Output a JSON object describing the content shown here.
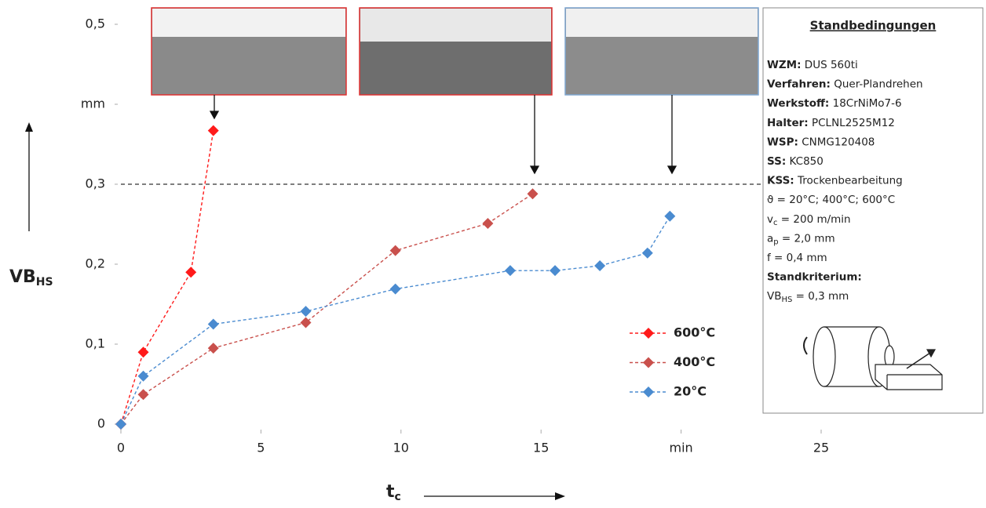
{
  "chart_data": {
    "type": "line",
    "ylabel": "VB",
    "ylabel_sub": "HS",
    "xlabel": "t",
    "xlabel_sub": "c",
    "xlim": [
      0,
      25
    ],
    "xticks": [
      0,
      5,
      10,
      15,
      {
        "value": 20,
        "label": "min"
      },
      25
    ],
    "ylim": [
      0,
      0.5
    ],
    "yticks": [
      0,
      {
        "value": 0.1,
        "label": "0,1"
      },
      {
        "value": 0.2,
        "label": "0,2"
      },
      {
        "value": 0.3,
        "label": "0,3"
      },
      {
        "value": 0.4,
        "label": "mm"
      },
      {
        "value": 0.5,
        "label": "0,5"
      }
    ],
    "threshold": 0.3,
    "series": [
      {
        "name": "600°C",
        "color": "#ff1a1a",
        "x": [
          0,
          0.8,
          2.5,
          3.3
        ],
        "values": [
          0,
          0.09,
          0.19,
          0.367
        ]
      },
      {
        "name": "400°C",
        "color": "#c9504c",
        "x": [
          0,
          0.8,
          3.3,
          6.6,
          9.8,
          13.1,
          14.7
        ],
        "values": [
          0,
          0.037,
          0.095,
          0.127,
          0.217,
          0.251,
          0.288
        ]
      },
      {
        "name": "20°C",
        "color": "#4a8bd0",
        "x": [
          0,
          0.8,
          3.3,
          6.6,
          9.8,
          13.9,
          15.5,
          17.1,
          18.8,
          19.6
        ],
        "values": [
          0,
          0.06,
          0.125,
          0.141,
          0.169,
          0.192,
          0.192,
          0.198,
          0.214,
          0.26
        ]
      }
    ]
  },
  "info": {
    "title": "Standbedingungen",
    "lines": [
      {
        "bold": "WZM:",
        "text": " DUS 560ti"
      },
      {
        "bold": "Verfahren:",
        "text": " Quer-Plandrehen"
      },
      {
        "bold": "Werkstoff:",
        "text": " 18CrNiMo7-6"
      },
      {
        "bold": "Halter:",
        "text": " PCLNL2525M12"
      },
      {
        "bold": "WSP:",
        "text": " CNMG120408"
      },
      {
        "bold": "SS:",
        "text": " KC850"
      },
      {
        "bold": "KSS:",
        "text": " Trockenbearbeitung"
      },
      {
        "text": "ϑ = 20°C; 400°C; 600°C"
      },
      {
        "text": "v",
        "sub": "c",
        "after": " = 200 m/min"
      },
      {
        "text": "a",
        "sub": "p",
        "after": " = 2,0 mm"
      },
      {
        "text": "f = 0,4 mm"
      },
      {
        "bold": "Standkriterium:"
      },
      {
        "text": "VB",
        "sub": "HS",
        "after": " = 0,3 mm"
      }
    ]
  }
}
